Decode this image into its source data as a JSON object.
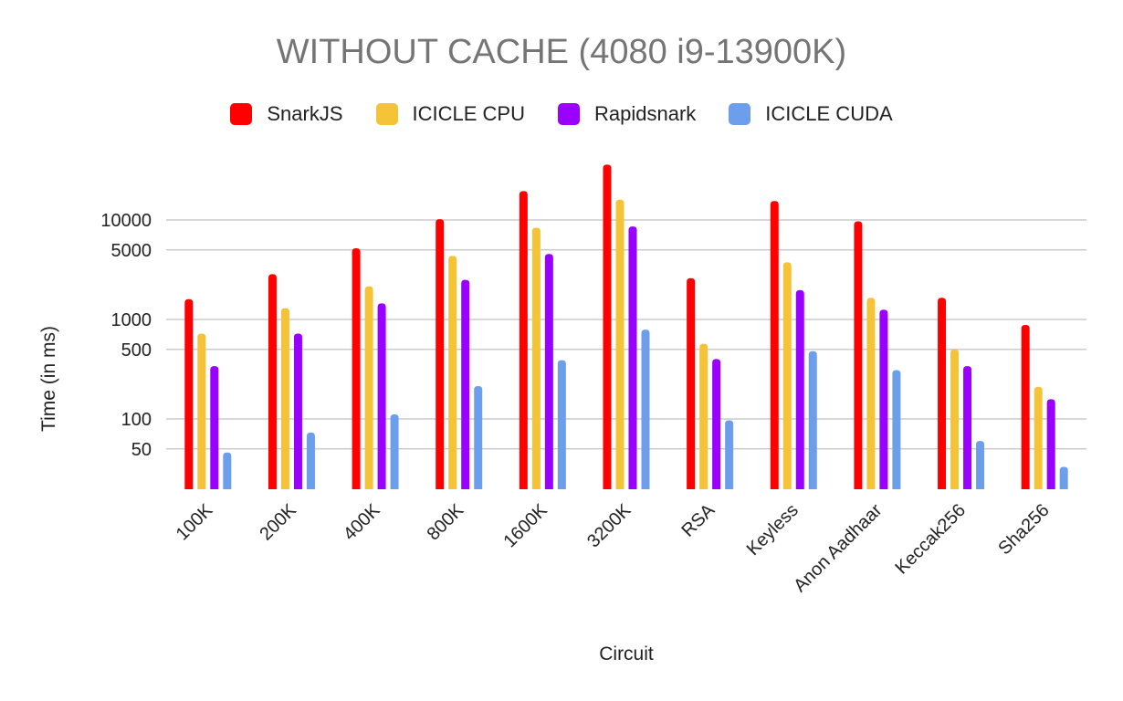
{
  "chart_data": {
    "type": "bar",
    "title": "WITHOUT CACHE (4080 i9-13900K)",
    "xlabel": "Circuit",
    "ylabel": "Time (in ms)",
    "yscale": "log",
    "ylim": [
      20,
      40000
    ],
    "yticks": [
      {
        "value": 50,
        "label": "50"
      },
      {
        "value": 100,
        "label": "100"
      },
      {
        "value": 500,
        "label": "500"
      },
      {
        "value": 1000,
        "label": "1000"
      },
      {
        "value": 5000,
        "label": "5000"
      },
      {
        "value": 10000,
        "label": "10000"
      }
    ],
    "grid": true,
    "legend_position": "top-center",
    "categories": [
      "100K",
      "200K",
      "400K",
      "800K",
      "1600K",
      "3200K",
      "RSA",
      "Keyless",
      "Anon Aadhaar",
      "Keccak256",
      "Sha256"
    ],
    "series": [
      {
        "name": "SnarkJS",
        "color": "#ff0000",
        "values": [
          1600,
          2850,
          5200,
          10200,
          19500,
          36000,
          2600,
          15500,
          9700,
          1650,
          880
        ]
      },
      {
        "name": "ICICLE CPU",
        "color": "#f4c338",
        "values": [
          720,
          1300,
          2150,
          4350,
          8350,
          16000,
          570,
          3750,
          1650,
          500,
          210
        ]
      },
      {
        "name": "Rapidsnark",
        "color": "#9900ff",
        "values": [
          340,
          720,
          1450,
          2500,
          4550,
          8600,
          400,
          1970,
          1250,
          340,
          158
        ]
      },
      {
        "name": "ICICLE CUDA",
        "color": "#6d9eeb",
        "values": [
          46,
          73,
          111,
          214,
          390,
          790,
          97,
          480,
          310,
          60,
          33
        ]
      }
    ]
  }
}
